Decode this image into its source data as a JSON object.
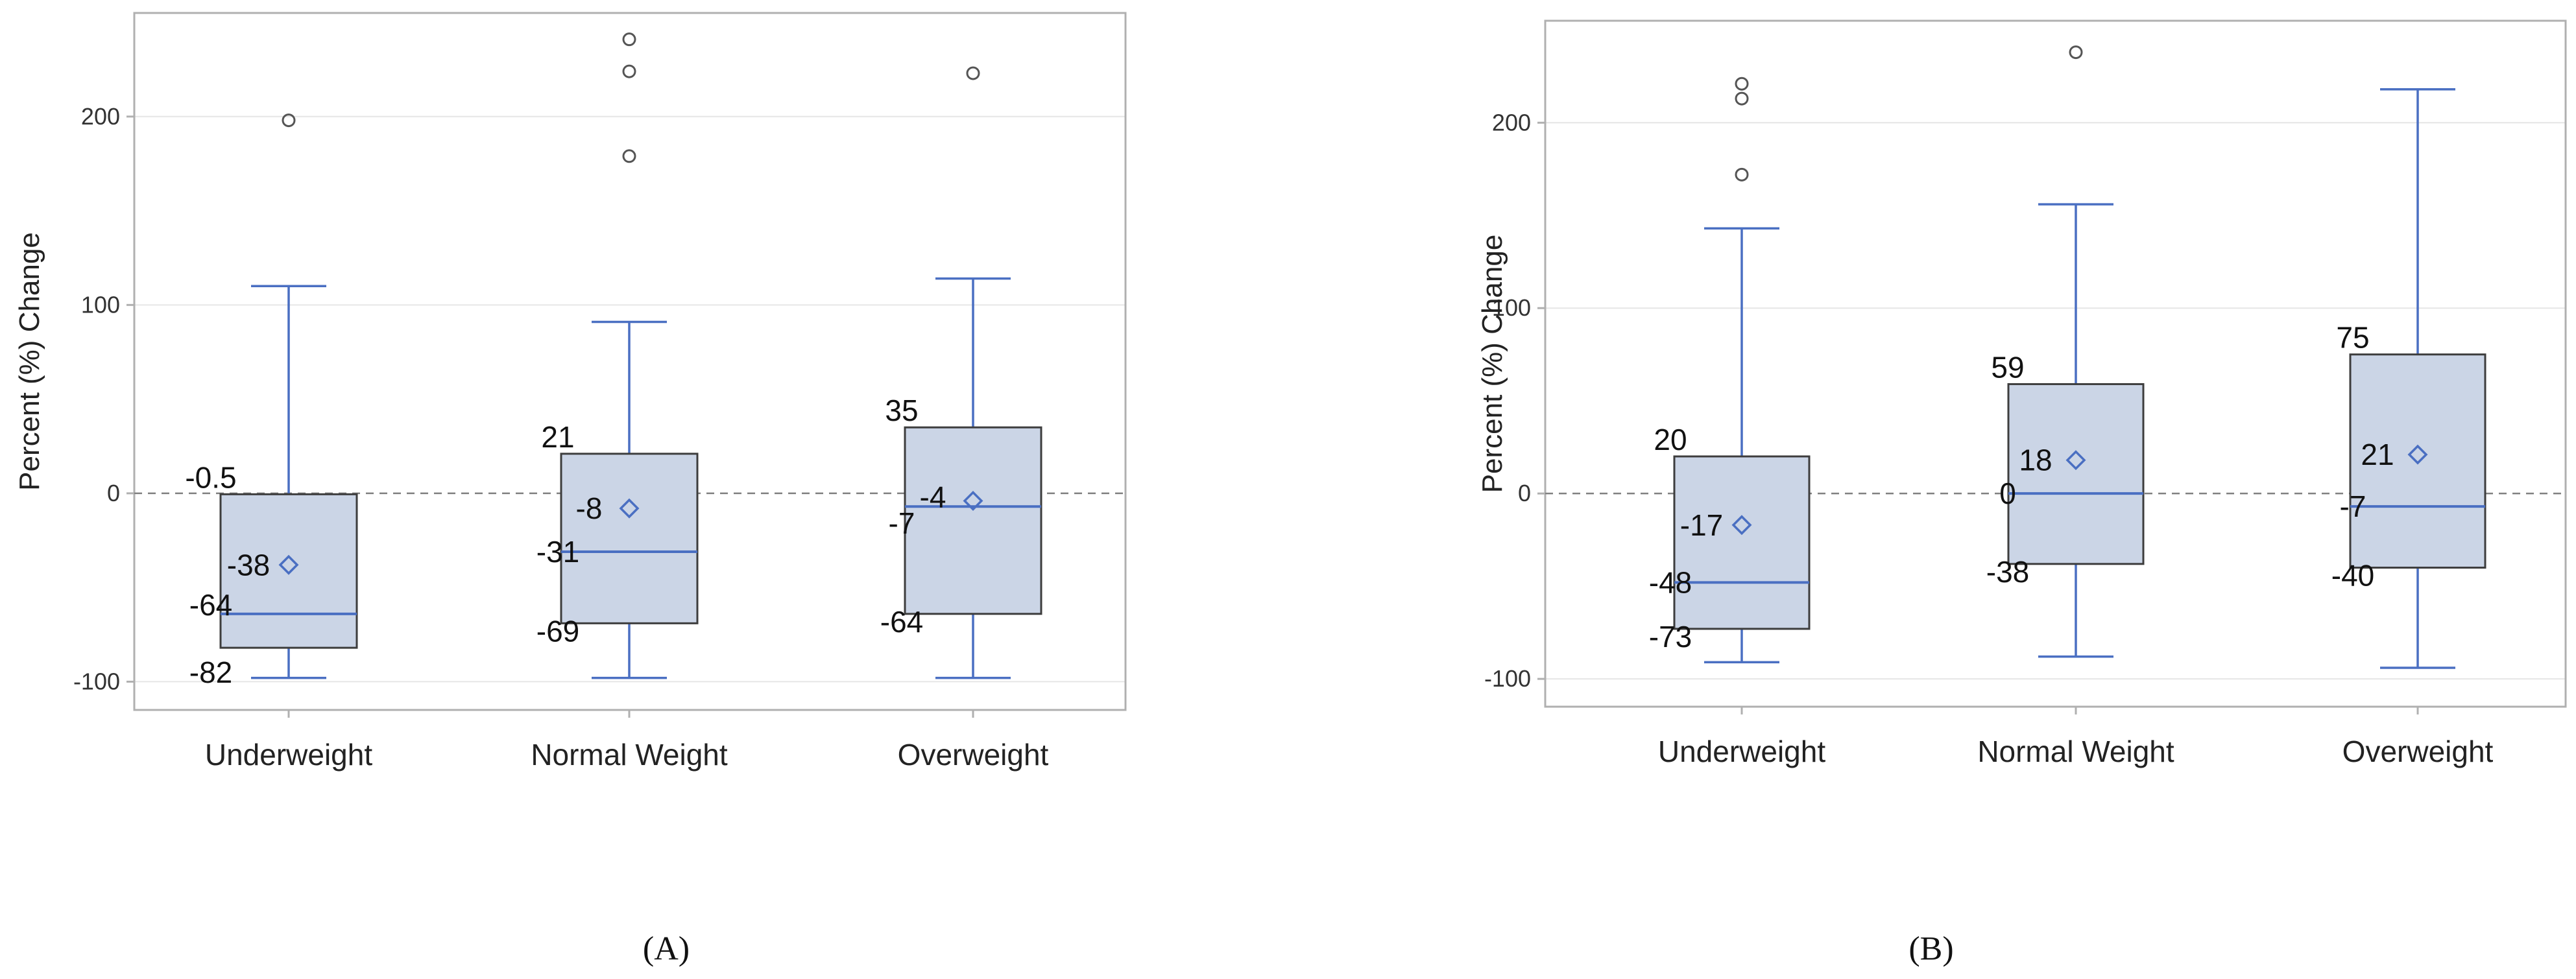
{
  "chart_data": [
    {
      "type": "box",
      "panel_label": "(A)",
      "ylabel": "Percent (%) Change",
      "ylim": [
        -115,
        255
      ],
      "yticks": [
        -100,
        0,
        100,
        200
      ],
      "reference_line": 0,
      "grid": true,
      "colors": {
        "box_fill": "#cbd5e6",
        "box_edge": "#3d3d3d",
        "median": "#4a6fc2",
        "whisker": "#4a6fc2",
        "mean_marker": "#4a6fc2",
        "outlier": "#555555",
        "frame": "#b0b0b0",
        "grid": "#e6e6e6",
        "reference": "#808080"
      },
      "categories": [
        "Underweight",
        "Normal Weight",
        "Overweight"
      ],
      "boxes": [
        {
          "category": "Underweight",
          "q1": -82,
          "median": -64,
          "q3": -0.5,
          "mean": -38,
          "whisker_low": -98,
          "whisker_high": 110,
          "outliers": [
            198
          ]
        },
        {
          "category": "Normal Weight",
          "q1": -69,
          "median": -31,
          "q3": 21,
          "mean": -8,
          "whisker_low": -98,
          "whisker_high": 91,
          "outliers": [
            179,
            224,
            241
          ]
        },
        {
          "category": "Overweight",
          "q1": -64,
          "median": -7,
          "q3": 35,
          "mean": -4,
          "whisker_low": -98,
          "whisker_high": 114,
          "outliers": [
            223
          ]
        }
      ],
      "annotations": [
        [
          "-0.5",
          "-38",
          "-64",
          "-82"
        ],
        [
          "21",
          "-8",
          "-31",
          "-69"
        ],
        [
          "35",
          "-4",
          "-7",
          "-64"
        ]
      ]
    },
    {
      "type": "box",
      "panel_label": "(B)",
      "ylabel": "Percent (%) Change",
      "ylim": [
        -115,
        255
      ],
      "yticks": [
        -100,
        0,
        100,
        200
      ],
      "reference_line": 0,
      "grid": true,
      "colors": {
        "box_fill": "#cbd5e6",
        "box_edge": "#3d3d3d",
        "median": "#4a6fc2",
        "whisker": "#4a6fc2",
        "mean_marker": "#4a6fc2",
        "outlier": "#555555",
        "frame": "#b0b0b0",
        "grid": "#e6e6e6",
        "reference": "#808080"
      },
      "categories": [
        "Underweight",
        "Normal Weight",
        "Overweight"
      ],
      "boxes": [
        {
          "category": "Underweight",
          "q1": -73,
          "median": -48,
          "q3": 20,
          "mean": -17,
          "whisker_low": -91,
          "whisker_high": 143,
          "outliers": [
            172,
            213,
            221
          ]
        },
        {
          "category": "Normal Weight",
          "q1": -38,
          "median": 0,
          "q3": 59,
          "mean": 18,
          "whisker_low": -88,
          "whisker_high": 156,
          "outliers": [
            238
          ]
        },
        {
          "category": "Overweight",
          "q1": -40,
          "median": -7,
          "q3": 75,
          "mean": 21,
          "whisker_low": -94,
          "whisker_high": 218,
          "outliers": []
        }
      ],
      "annotations": [
        [
          "20",
          "-17",
          "-48",
          "-73"
        ],
        [
          "59",
          "18",
          "0",
          "-38"
        ],
        [
          "75",
          "21",
          "-7",
          "-40"
        ]
      ]
    }
  ]
}
